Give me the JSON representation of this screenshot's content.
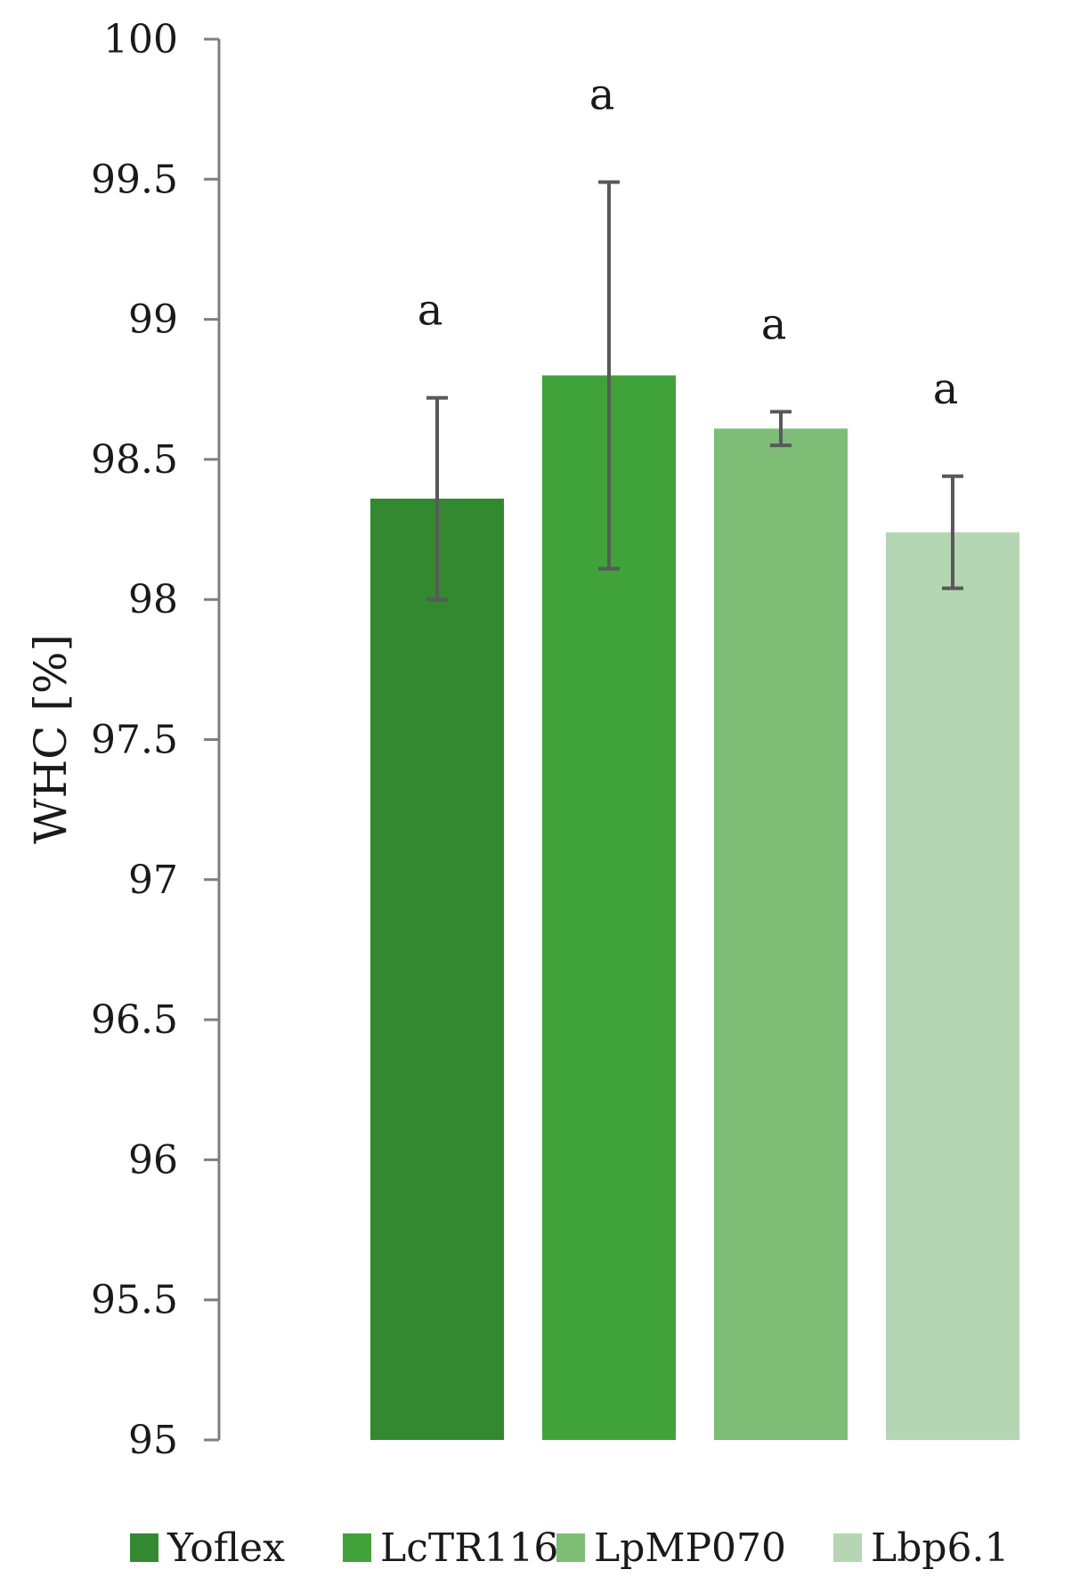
{
  "chart_data": {
    "type": "bar",
    "title": "",
    "xlabel": "",
    "ylabel": "WHC [%]",
    "ylim": [
      95,
      100
    ],
    "yticks": [
      95,
      95.5,
      96,
      96.5,
      97,
      97.5,
      98,
      98.5,
      99,
      99.5,
      100
    ],
    "grid": false,
    "legend_position": "bottom",
    "series": [
      {
        "name": "Yoflex",
        "value": 98.36,
        "error": 0.36,
        "significance": "a",
        "color": "#33892f"
      },
      {
        "name": "LcTR116",
        "value": 98.8,
        "error": 0.69,
        "significance": "a",
        "color": "#40a33a"
      },
      {
        "name": "LpMP070",
        "value": 98.61,
        "error": 0.06,
        "significance": "a",
        "color": "#7dbd76"
      },
      {
        "name": "Lbp6.1",
        "value": 98.24,
        "error": 0.2,
        "significance": "a",
        "color": "#b5d6b2"
      }
    ]
  }
}
